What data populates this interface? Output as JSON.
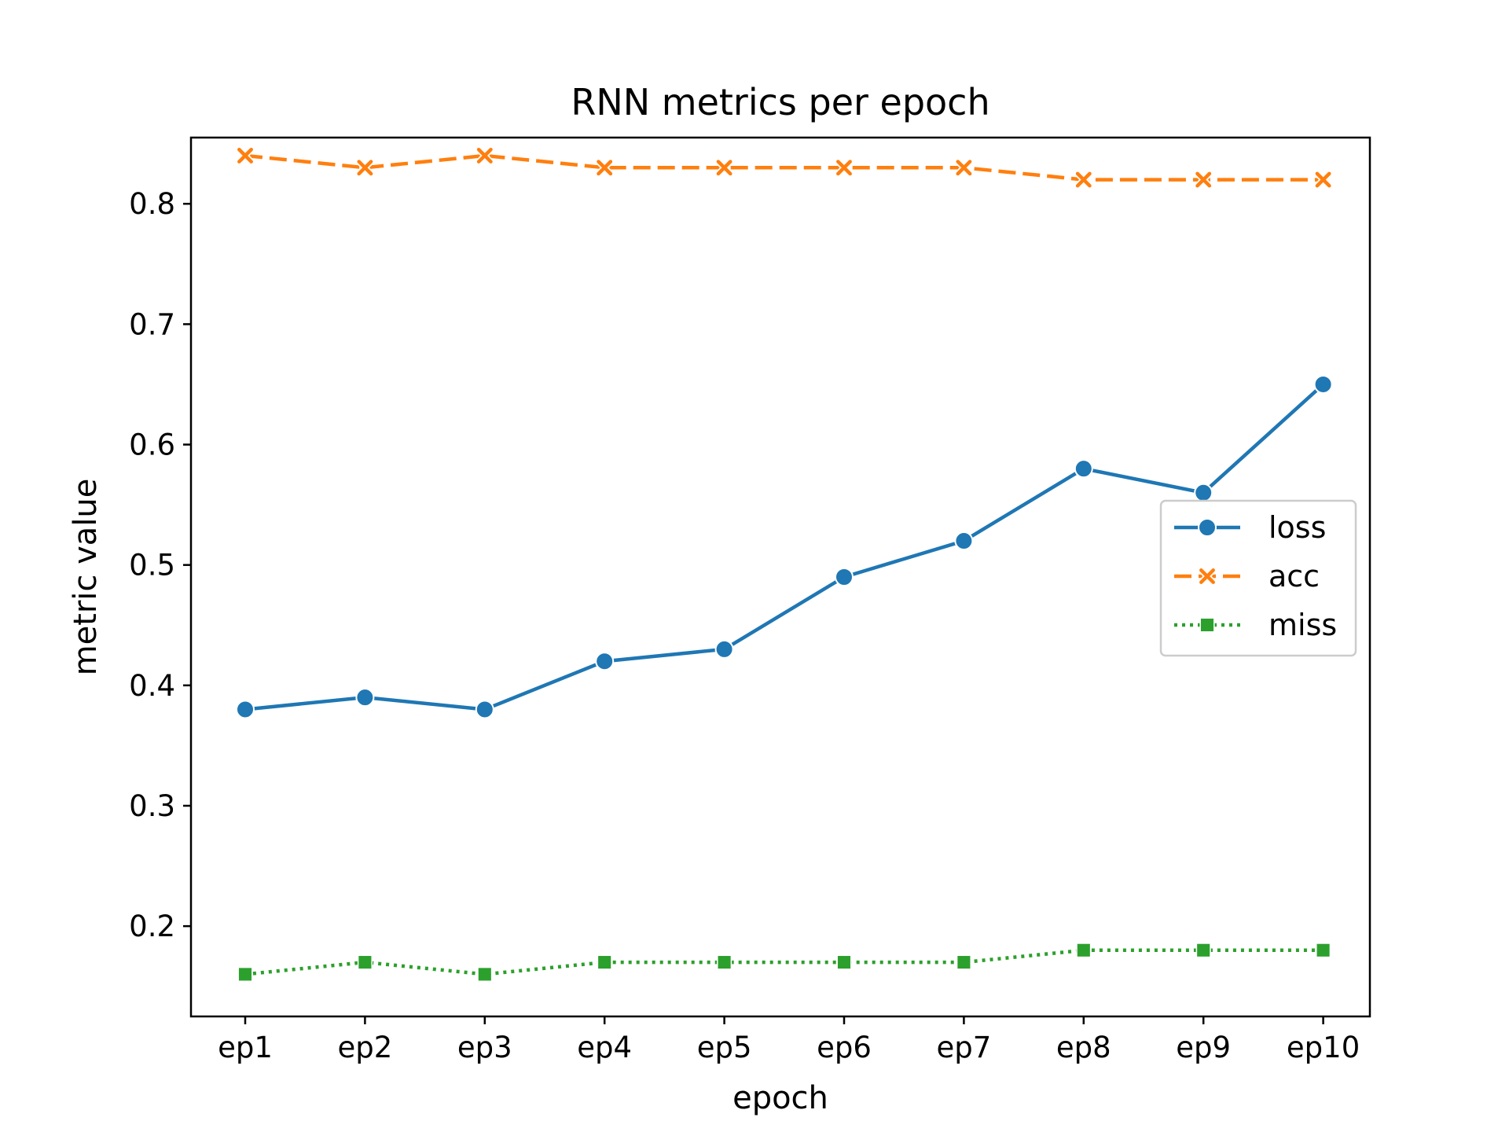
{
  "chart_data": {
    "type": "line",
    "title": "RNN metrics per epoch",
    "xlabel": "epoch",
    "ylabel": "metric value",
    "categories": [
      "ep1",
      "ep2",
      "ep3",
      "ep4",
      "ep5",
      "ep6",
      "ep7",
      "ep8",
      "ep9",
      "ep10"
    ],
    "ylim": [
      0.125,
      0.855
    ],
    "yticks": [
      "0.2",
      "0.3",
      "0.4",
      "0.5",
      "0.6",
      "0.7",
      "0.8"
    ],
    "grid": false,
    "legend_position": "center-right",
    "series": [
      {
        "name": "loss",
        "color": "#1f77b4",
        "line_style": "solid",
        "marker": "circle",
        "values": [
          0.38,
          0.39,
          0.38,
          0.42,
          0.43,
          0.49,
          0.52,
          0.58,
          0.56,
          0.65
        ]
      },
      {
        "name": "acc",
        "color": "#ff7f0e",
        "line_style": "dashed",
        "marker": "x",
        "values": [
          0.84,
          0.83,
          0.84,
          0.83,
          0.83,
          0.83,
          0.83,
          0.82,
          0.82,
          0.82
        ]
      },
      {
        "name": "miss",
        "color": "#2ca02c",
        "line_style": "dotted",
        "marker": "square",
        "values": [
          0.16,
          0.17,
          0.16,
          0.17,
          0.17,
          0.17,
          0.17,
          0.18,
          0.18,
          0.18
        ]
      }
    ]
  }
}
